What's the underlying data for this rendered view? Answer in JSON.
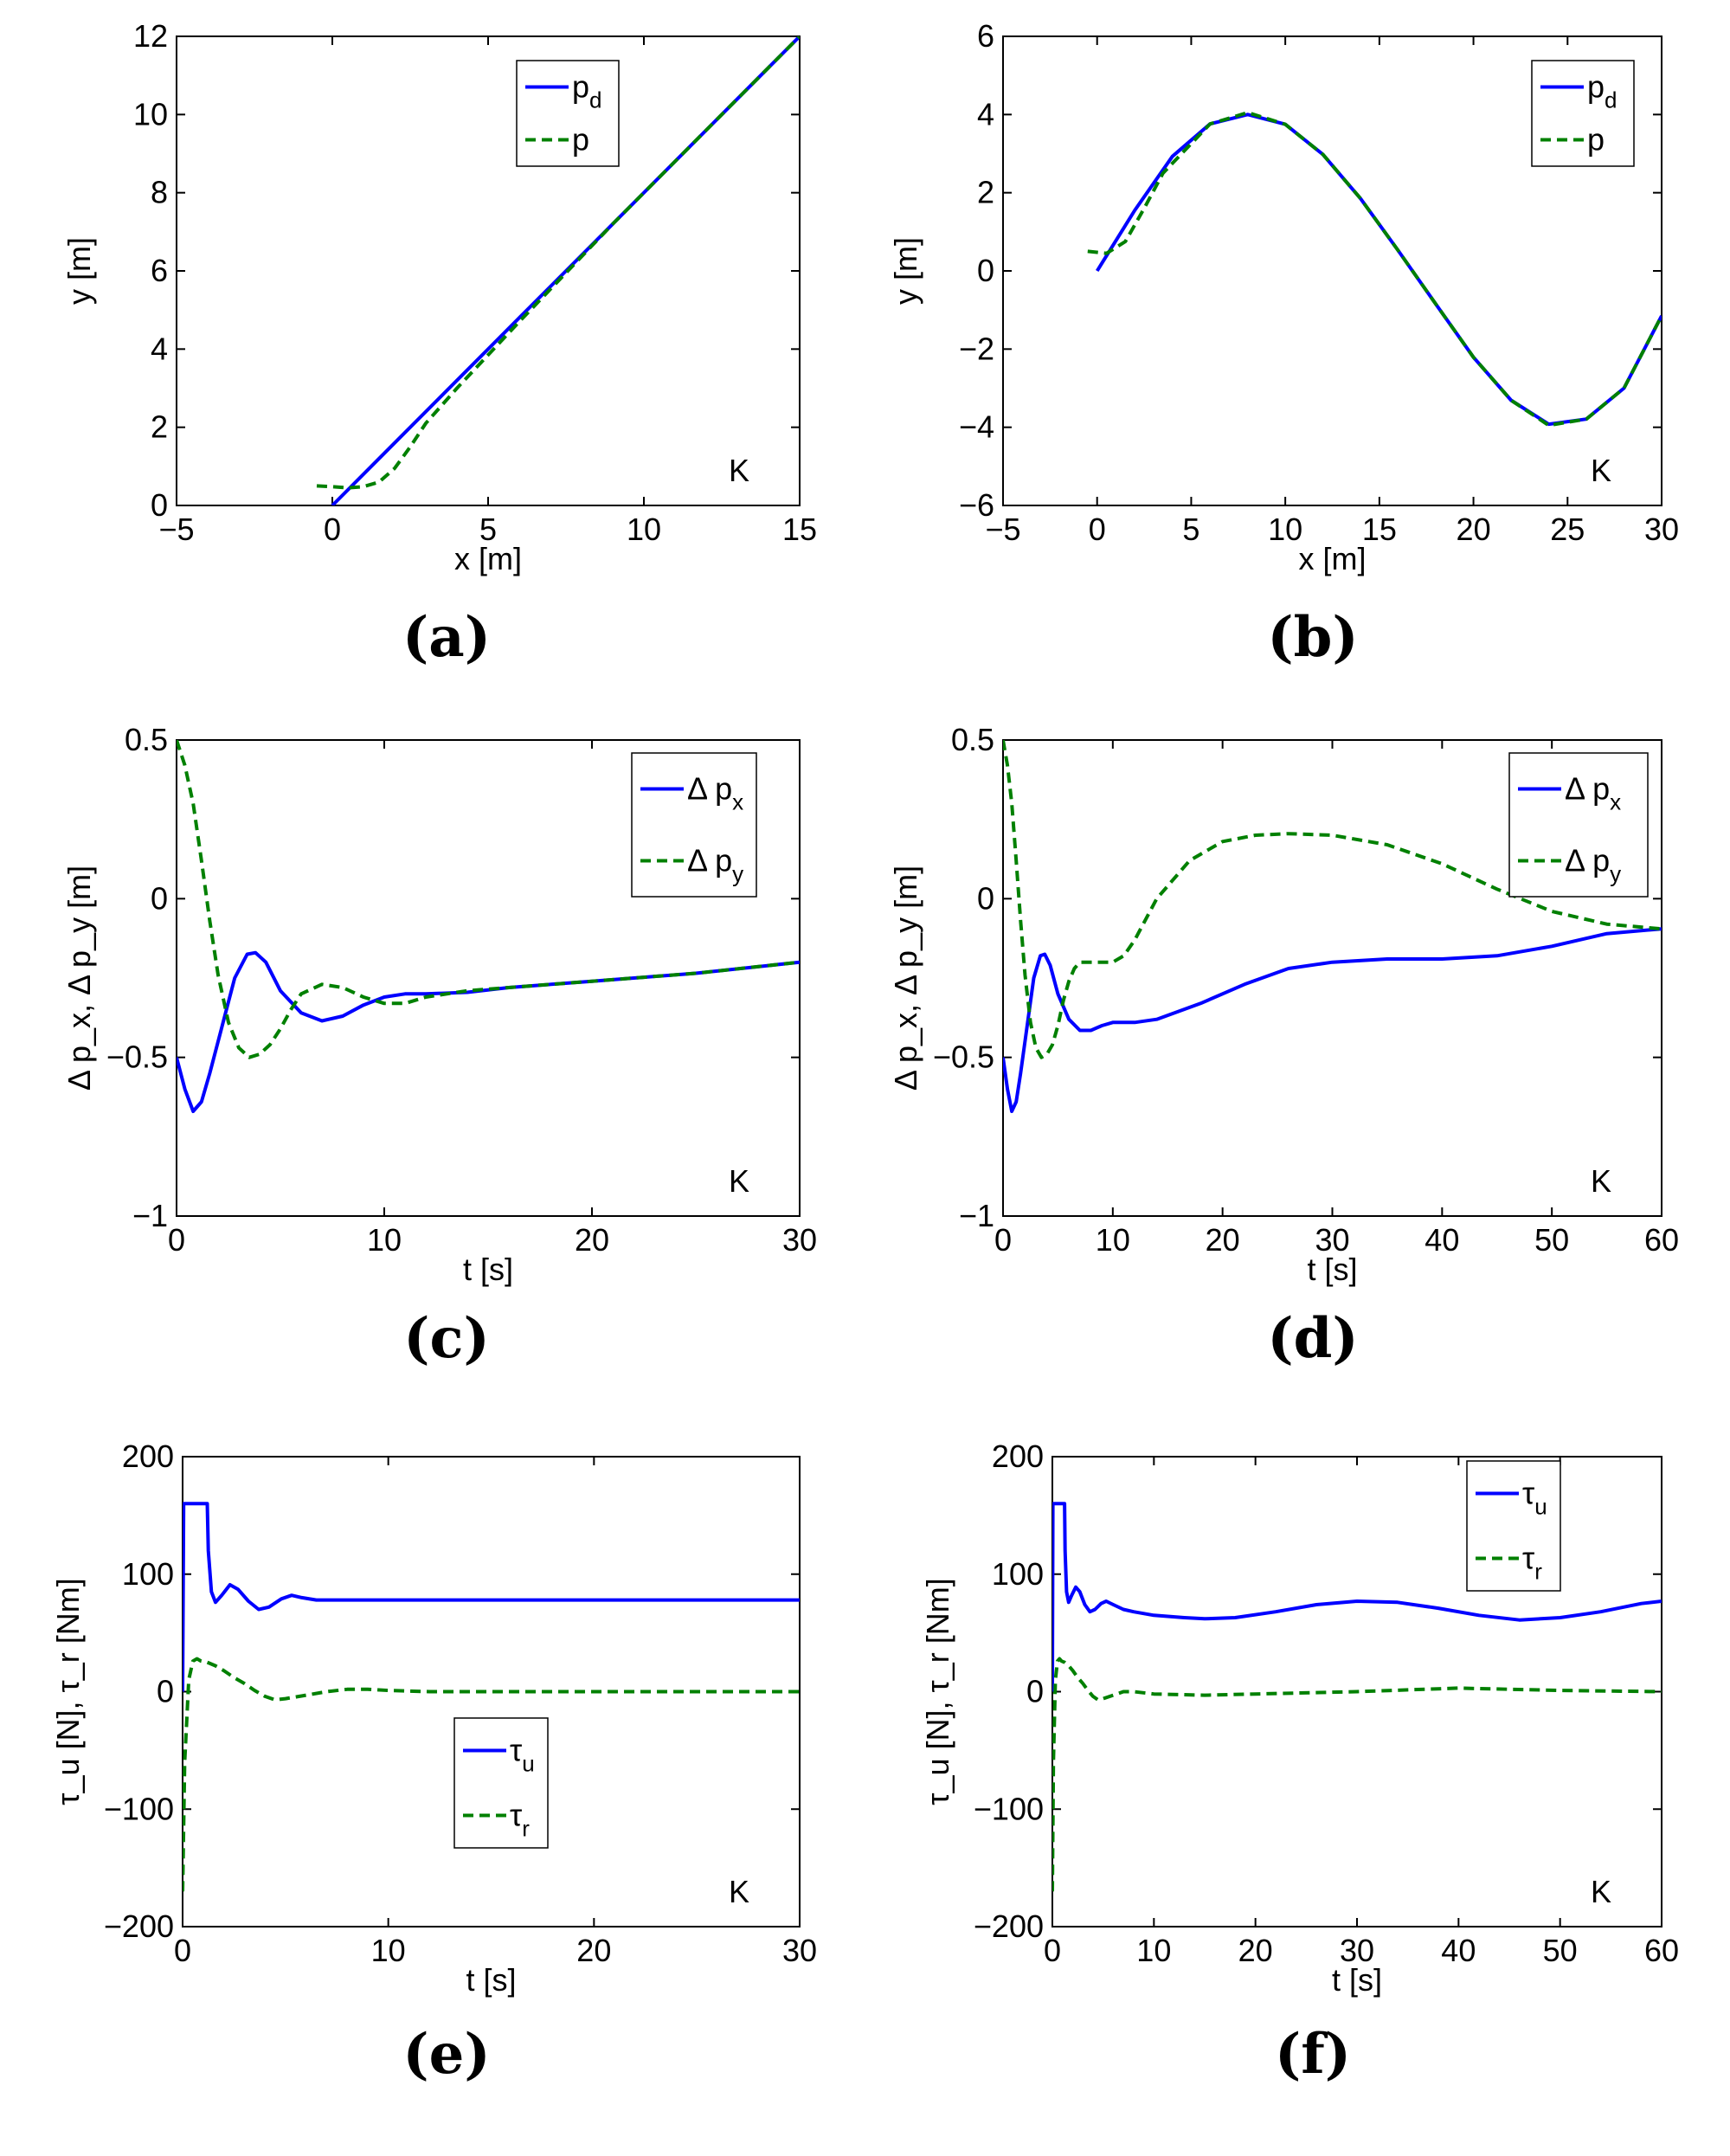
{
  "figure": {
    "panels": [
      {
        "id": "a",
        "label": "(a)"
      },
      {
        "id": "b",
        "label": "(b)"
      },
      {
        "id": "c",
        "label": "(c)"
      },
      {
        "id": "d",
        "label": "(d)"
      },
      {
        "id": "e",
        "label": "(e)"
      },
      {
        "id": "f",
        "label": "(f)"
      }
    ]
  },
  "colors": {
    "series_1": "#0000ff",
    "series_2": "#008000"
  },
  "chart_data": [
    {
      "panel": "a",
      "type": "line",
      "xlabel": "x [m]",
      "ylabel": "y [m]",
      "xlim": [
        -5,
        15
      ],
      "ylim": [
        0,
        12
      ],
      "xticks": [
        -5,
        0,
        5,
        10,
        15
      ],
      "yticks": [
        0,
        2,
        4,
        6,
        8,
        10,
        12
      ],
      "xtick_labels": [
        "−5",
        "0",
        "5",
        "10",
        "15"
      ],
      "ytick_labels": [
        "0",
        "2",
        "4",
        "6",
        "8",
        "10",
        "12"
      ],
      "annotation": "K",
      "legend": {
        "position": "top-right",
        "entries": [
          {
            "base": "p",
            "sub": "d",
            "style": "solid"
          },
          {
            "base": "p",
            "sub": "",
            "style": "dashed"
          }
        ]
      },
      "series": [
        {
          "name": "p_d",
          "color": "#0000ff",
          "style": "solid",
          "x": [
            0,
            1.5,
            3,
            6,
            9,
            12,
            15
          ],
          "y": [
            0,
            1.2,
            2.4,
            4.8,
            7.2,
            9.6,
            12
          ]
        },
        {
          "name": "p",
          "color": "#008000",
          "style": "dashed",
          "x": [
            -0.5,
            0,
            0.5,
            1,
            1.5,
            2,
            2.5,
            3,
            4,
            6,
            9,
            12,
            15
          ],
          "y": [
            0.5,
            0.48,
            0.45,
            0.48,
            0.6,
            0.95,
            1.5,
            2.1,
            3.0,
            4.7,
            7.2,
            9.6,
            12
          ]
        }
      ]
    },
    {
      "panel": "b",
      "type": "line",
      "xlabel": "x [m]",
      "ylabel": "y [m]",
      "xlim": [
        -5,
        30
      ],
      "ylim": [
        -6,
        6
      ],
      "xticks": [
        -5,
        0,
        5,
        10,
        15,
        20,
        25,
        30
      ],
      "yticks": [
        -6,
        -4,
        -2,
        0,
        2,
        4,
        6
      ],
      "xtick_labels": [
        "−5",
        "0",
        "5",
        "10",
        "15",
        "20",
        "25",
        "30"
      ],
      "ytick_labels": [
        "−6",
        "−4",
        "−2",
        "0",
        "2",
        "4",
        "6"
      ],
      "annotation": "K",
      "legend": {
        "position": "top-right",
        "entries": [
          {
            "base": "p",
            "sub": "d",
            "style": "solid"
          },
          {
            "base": "p",
            "sub": "",
            "style": "dashed"
          }
        ]
      },
      "series": [
        {
          "name": "p_d",
          "color": "#0000ff",
          "style": "solid",
          "x": [
            0,
            2,
            4,
            6,
            8,
            10,
            12,
            14,
            16,
            18,
            20,
            22,
            24,
            26,
            28,
            30
          ],
          "y": [
            0,
            1.55,
            2.93,
            3.76,
            4.0,
            3.75,
            2.98,
            1.85,
            0.52,
            -0.85,
            -2.21,
            -3.31,
            -3.92,
            -3.79,
            -3.0,
            -1.15
          ]
        },
        {
          "name": "p",
          "color": "#008000",
          "style": "dashed",
          "x": [
            -0.5,
            0.5,
            1.5,
            2.5,
            3.5,
            6,
            8,
            10,
            12,
            14,
            16,
            18,
            20,
            22,
            24,
            26,
            28,
            30
          ],
          "y": [
            0.5,
            0.45,
            0.75,
            1.6,
            2.5,
            3.76,
            4.05,
            3.75,
            2.98,
            1.85,
            0.52,
            -0.85,
            -2.21,
            -3.31,
            -3.95,
            -3.79,
            -3.0,
            -1.15
          ]
        }
      ]
    },
    {
      "panel": "c",
      "type": "line",
      "xlabel": "t [s]",
      "ylabel": "Δ p_x, Δ p_y [m]",
      "xlim": [
        0,
        30
      ],
      "ylim": [
        -1,
        0.5
      ],
      "xticks": [
        0,
        10,
        20,
        30
      ],
      "yticks": [
        -1,
        -0.5,
        0,
        0.5
      ],
      "xtick_labels": [
        "0",
        "10",
        "20",
        "30"
      ],
      "ytick_labels": [
        "−1",
        "−0.5",
        "0",
        "0.5"
      ],
      "annotation": "K",
      "legend": {
        "position": "top-right",
        "entries": [
          {
            "base": "Δ p",
            "sub": "x",
            "style": "solid"
          },
          {
            "base": "Δ p",
            "sub": "y",
            "style": "dashed"
          }
        ]
      },
      "series": [
        {
          "name": "Δ p_x",
          "color": "#0000ff",
          "style": "solid",
          "x": [
            0,
            0.4,
            0.8,
            1.2,
            1.6,
            2.2,
            2.8,
            3.4,
            3.8,
            4.3,
            5,
            6,
            7,
            8,
            9,
            10,
            11,
            12,
            14,
            16,
            20,
            25,
            30
          ],
          "y": [
            -0.5,
            -0.6,
            -0.67,
            -0.64,
            -0.55,
            -0.4,
            -0.25,
            -0.175,
            -0.17,
            -0.2,
            -0.29,
            -0.36,
            -0.385,
            -0.37,
            -0.335,
            -0.31,
            -0.3,
            -0.3,
            -0.295,
            -0.28,
            -0.26,
            -0.235,
            -0.2
          ]
        },
        {
          "name": "Δ p_y",
          "color": "#008000",
          "style": "dashed",
          "x": [
            0,
            0.4,
            0.8,
            1.2,
            1.6,
            2,
            2.5,
            3,
            3.5,
            4,
            4.5,
            5,
            5.5,
            6,
            7,
            8,
            9,
            10,
            11,
            12,
            14,
            16,
            20,
            25,
            30
          ],
          "y": [
            0.5,
            0.42,
            0.3,
            0.12,
            -0.07,
            -0.24,
            -0.39,
            -0.47,
            -0.5,
            -0.49,
            -0.46,
            -0.41,
            -0.35,
            -0.3,
            -0.27,
            -0.28,
            -0.31,
            -0.33,
            -0.33,
            -0.31,
            -0.29,
            -0.28,
            -0.26,
            -0.235,
            -0.2
          ]
        }
      ]
    },
    {
      "panel": "d",
      "type": "line",
      "xlabel": "t [s]",
      "ylabel": "Δ p_x, Δ p_y [m]",
      "xlim": [
        0,
        60
      ],
      "ylim": [
        -1,
        0.5
      ],
      "xticks": [
        0,
        10,
        20,
        30,
        40,
        50,
        60
      ],
      "yticks": [
        -1,
        -0.5,
        0,
        0.5
      ],
      "xtick_labels": [
        "0",
        "10",
        "20",
        "30",
        "40",
        "50",
        "60"
      ],
      "ytick_labels": [
        "−1",
        "−0.5",
        "0",
        "0.5"
      ],
      "annotation": "K",
      "legend": {
        "position": "top-right",
        "entries": [
          {
            "base": "Δ p",
            "sub": "x",
            "style": "solid"
          },
          {
            "base": "Δ p",
            "sub": "y",
            "style": "dashed"
          }
        ]
      },
      "series": [
        {
          "name": "Δ p_x",
          "color": "#0000ff",
          "style": "solid",
          "x": [
            0,
            0.4,
            0.8,
            1.2,
            1.6,
            2.2,
            2.8,
            3.4,
            3.8,
            4.3,
            5,
            6,
            7,
            8,
            9,
            10,
            12,
            14,
            18,
            22,
            26,
            30,
            35,
            40,
            45,
            50,
            55,
            60
          ],
          "y": [
            -0.5,
            -0.6,
            -0.67,
            -0.64,
            -0.55,
            -0.4,
            -0.25,
            -0.18,
            -0.175,
            -0.21,
            -0.3,
            -0.38,
            -0.415,
            -0.415,
            -0.4,
            -0.39,
            -0.39,
            -0.38,
            -0.33,
            -0.27,
            -0.22,
            -0.2,
            -0.19,
            -0.19,
            -0.18,
            -0.15,
            -0.11,
            -0.095
          ]
        },
        {
          "name": "Δ p_y",
          "color": "#008000",
          "style": "dashed",
          "x": [
            0,
            0.4,
            0.8,
            1.2,
            1.6,
            2,
            2.5,
            3,
            3.5,
            4,
            4.5,
            5,
            5.5,
            6,
            6.5,
            7,
            8,
            9,
            10,
            11,
            12,
            14,
            17,
            20,
            23,
            26,
            30,
            35,
            40,
            45,
            50,
            55,
            60
          ],
          "y": [
            0.5,
            0.42,
            0.3,
            0.12,
            -0.07,
            -0.24,
            -0.39,
            -0.47,
            -0.5,
            -0.49,
            -0.46,
            -0.4,
            -0.32,
            -0.26,
            -0.22,
            -0.2,
            -0.2,
            -0.2,
            -0.2,
            -0.18,
            -0.13,
            0.0,
            0.12,
            0.18,
            0.2,
            0.205,
            0.2,
            0.17,
            0.11,
            0.03,
            -0.04,
            -0.08,
            -0.095
          ]
        }
      ]
    },
    {
      "panel": "e",
      "type": "line",
      "xlabel": "t [s]",
      "ylabel": "τ_u [N], τ_r [Nm]",
      "xlim": [
        0,
        30
      ],
      "ylim": [
        -200,
        200
      ],
      "xticks": [
        0,
        10,
        20,
        30
      ],
      "yticks": [
        -200,
        -100,
        0,
        100,
        200
      ],
      "xtick_labels": [
        "0",
        "10",
        "20",
        "30"
      ],
      "ytick_labels": [
        "−200",
        "−100",
        "0",
        "100",
        "200"
      ],
      "annotation": "K",
      "legend": {
        "position": "center",
        "entries": [
          {
            "base": "τ",
            "sub": "u",
            "style": "solid"
          },
          {
            "base": "τ",
            "sub": "r",
            "style": "dashed"
          }
        ]
      },
      "series": [
        {
          "name": "τ_u",
          "color": "#0000ff",
          "style": "solid",
          "x": [
            0,
            0.05,
            0.1,
            1.2,
            1.25,
            1.4,
            1.6,
            1.9,
            2.3,
            2.7,
            3.2,
            3.7,
            4.2,
            4.8,
            5.3,
            5.8,
            6.5,
            7.5,
            9,
            12,
            20,
            30
          ],
          "y": [
            0,
            160,
            160,
            160,
            120,
            85,
            76,
            82,
            91,
            87,
            77,
            70,
            72,
            79,
            82,
            80,
            78,
            78,
            78,
            78,
            78,
            78
          ]
        },
        {
          "name": "τ_r",
          "color": "#008000",
          "style": "dashed",
          "x": [
            0,
            0.1,
            0.3,
            0.5,
            0.7,
            0.9,
            1.2,
            1.6,
            2,
            2.5,
            3,
            3.5,
            4,
            4.5,
            5,
            6,
            7,
            8,
            9,
            10,
            12,
            15,
            20,
            30
          ],
          "y": [
            -170,
            -60,
            10,
            26,
            28,
            26,
            25,
            22,
            18,
            12,
            7,
            1,
            -4,
            -7,
            -6,
            -3,
            0,
            2,
            2,
            1,
            0,
            0,
            0,
            0
          ]
        }
      ]
    },
    {
      "panel": "f",
      "type": "line",
      "xlabel": "t [s]",
      "ylabel": "τ_u [N], τ_r [Nm]",
      "xlim": [
        0,
        60
      ],
      "ylim": [
        -200,
        200
      ],
      "xticks": [
        0,
        10,
        20,
        30,
        40,
        50,
        60
      ],
      "yticks": [
        -200,
        -100,
        0,
        100,
        200
      ],
      "xtick_labels": [
        "0",
        "10",
        "20",
        "30",
        "40",
        "50",
        "60"
      ],
      "ytick_labels": [
        "−200",
        "−100",
        "0",
        "100",
        "200"
      ],
      "annotation": "K",
      "legend": {
        "position": "top-right",
        "entries": [
          {
            "base": "τ",
            "sub": "u",
            "style": "solid"
          },
          {
            "base": "τ",
            "sub": "r",
            "style": "dashed"
          }
        ]
      },
      "series": [
        {
          "name": "τ_u",
          "color": "#0000ff",
          "style": "solid",
          "x": [
            0,
            0.05,
            0.1,
            1.2,
            1.25,
            1.4,
            1.6,
            1.9,
            2.3,
            2.7,
            3.2,
            3.7,
            4.2,
            4.8,
            5.3,
            6,
            7,
            8,
            10,
            13,
            15,
            18,
            22,
            26,
            30,
            34,
            38,
            42,
            46,
            50,
            54,
            58,
            60
          ],
          "y": [
            0,
            160,
            160,
            160,
            120,
            85,
            76,
            82,
            89,
            85,
            74,
            68,
            70,
            75,
            77,
            74,
            70,
            68,
            65,
            63,
            62,
            63,
            68,
            74,
            77,
            76,
            71,
            65,
            61,
            63,
            68,
            75,
            77
          ]
        },
        {
          "name": "τ_r",
          "color": "#008000",
          "style": "dashed",
          "x": [
            0,
            0.1,
            0.3,
            0.5,
            0.7,
            0.9,
            1.2,
            1.6,
            2,
            2.5,
            3,
            3.5,
            4,
            4.5,
            5,
            6,
            7,
            8,
            10,
            15,
            20,
            30,
            40,
            50,
            60
          ],
          "y": [
            -170,
            -60,
            10,
            26,
            28,
            26,
            25,
            22,
            18,
            12,
            7,
            1,
            -4,
            -7,
            -6,
            -3,
            0,
            0,
            -2,
            -3,
            -2,
            0,
            3,
            1,
            0
          ]
        }
      ]
    }
  ]
}
